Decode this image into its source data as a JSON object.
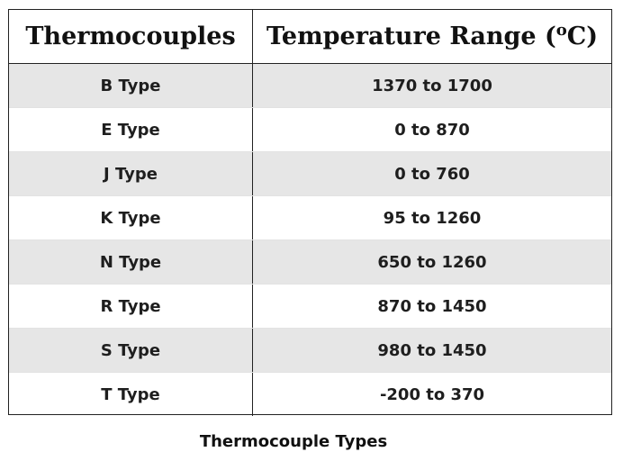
{
  "table": {
    "header": {
      "col1": "Thermocouples",
      "col2_prefix": "Temperature Range (",
      "col2_sup": "o",
      "col2_suffix": "C)"
    },
    "rows": [
      {
        "type": "B Type",
        "range": "1370 to 1700"
      },
      {
        "type": "E Type",
        "range": "0 to 870"
      },
      {
        "type": "J Type",
        "range": "0 to 760"
      },
      {
        "type": "K Type",
        "range": "95 to 1260"
      },
      {
        "type": "N Type",
        "range": "650 to 1260"
      },
      {
        "type": "R Type",
        "range": "870 to 1450"
      },
      {
        "type": "S Type",
        "range": "980 to 1450"
      },
      {
        "type": "T Type",
        "range": "-200 to 370"
      }
    ]
  },
  "caption": "Thermocouple Types",
  "colors": {
    "shaded_row": "#e6e6e6",
    "plain_row": "#ffffff",
    "border": "#222222"
  }
}
